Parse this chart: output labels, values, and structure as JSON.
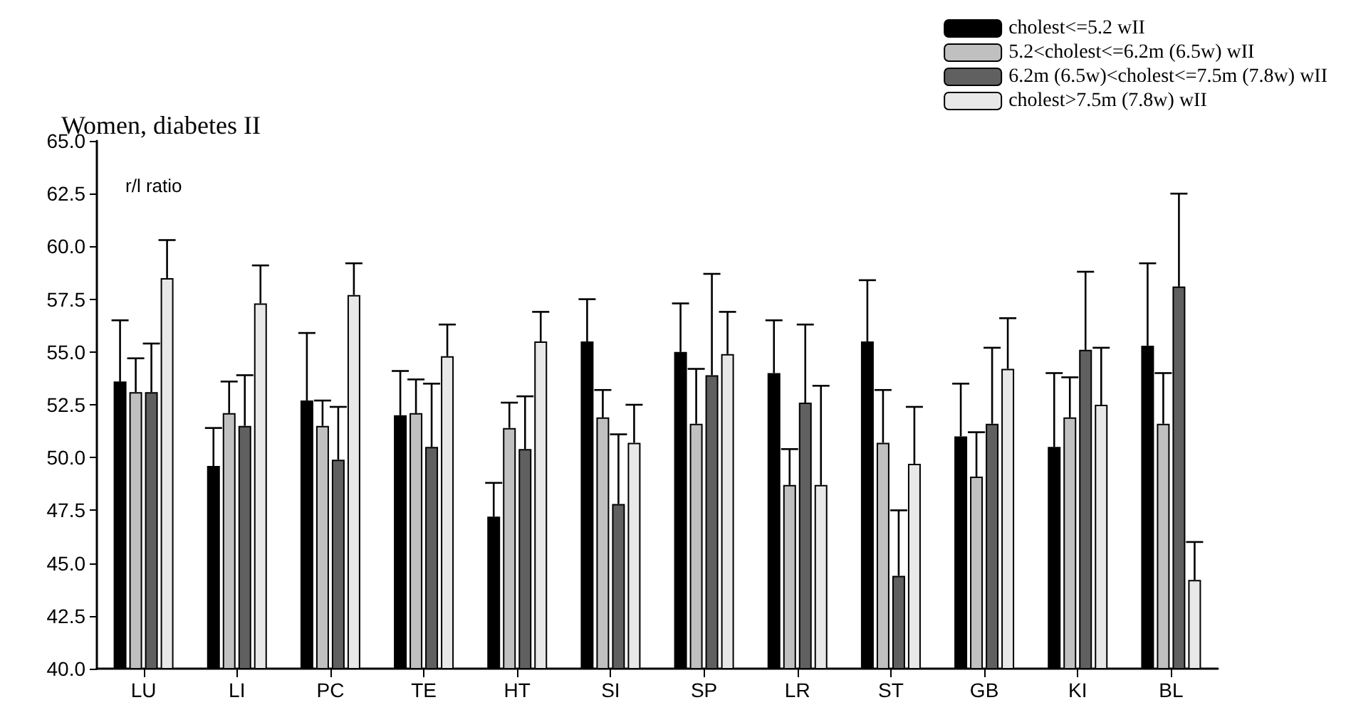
{
  "chart_data": {
    "type": "bar",
    "title": "Women, diabetes II",
    "ylabel": "r/l ratio",
    "categories": [
      "LU",
      "LI",
      "PC",
      "TE",
      "HT",
      "SI",
      "SP",
      "LR",
      "ST",
      "GB",
      "KI",
      "BL"
    ],
    "series": [
      {
        "name": "cholest<=5.2 wII",
        "color": "#000000",
        "values": [
          53.6,
          49.6,
          52.7,
          52.0,
          47.2,
          55.5,
          55.0,
          54.0,
          55.5,
          51.0,
          50.5,
          55.3
        ],
        "errors": [
          [
            53.6,
            56.5
          ],
          [
            49.6,
            51.4
          ],
          [
            52.7,
            55.9
          ],
          [
            52.0,
            54.1
          ],
          [
            47.2,
            48.8
          ],
          [
            55.5,
            57.5
          ],
          [
            55.0,
            57.3
          ],
          [
            54.0,
            56.5
          ],
          [
            55.5,
            58.4
          ],
          [
            51.0,
            53.5
          ],
          [
            50.5,
            54.0
          ],
          [
            55.3,
            59.2
          ]
        ]
      },
      {
        "name": "5.2<cholest<=6.2m (6.5w) wII",
        "color": "#c0c0c0",
        "values": [
          53.1,
          52.1,
          51.5,
          52.1,
          51.4,
          51.9,
          51.6,
          48.7,
          50.7,
          49.1,
          51.9,
          51.6
        ],
        "errors": [
          [
            53.1,
            54.7
          ],
          [
            52.1,
            53.6
          ],
          [
            51.5,
            52.7
          ],
          [
            52.1,
            53.7
          ],
          [
            51.4,
            52.6
          ],
          [
            51.9,
            53.2
          ],
          [
            51.6,
            54.2
          ],
          [
            48.7,
            50.4
          ],
          [
            50.7,
            53.2
          ],
          [
            49.1,
            51.2
          ],
          [
            51.9,
            53.8
          ],
          [
            51.6,
            54.0
          ]
        ]
      },
      {
        "name": "6.2m (6.5w)<cholest<=7.5m (7.8w) wII",
        "color": "#606060",
        "values": [
          53.1,
          51.5,
          49.9,
          50.5,
          50.4,
          47.8,
          53.9,
          52.6,
          44.4,
          51.6,
          55.1,
          58.1
        ],
        "errors": [
          [
            53.1,
            55.4
          ],
          [
            51.5,
            53.9
          ],
          [
            49.9,
            52.4
          ],
          [
            50.5,
            53.5
          ],
          [
            50.4,
            52.9
          ],
          [
            47.8,
            51.1
          ],
          [
            53.9,
            58.7
          ],
          [
            52.6,
            56.3
          ],
          [
            44.4,
            47.5
          ],
          [
            51.6,
            55.2
          ],
          [
            55.1,
            58.8
          ],
          [
            58.1,
            62.5
          ]
        ]
      },
      {
        "name": "cholest>7.5m (7.8w) wII",
        "color": "#e8e8e8",
        "values": [
          58.5,
          57.3,
          57.7,
          54.8,
          55.5,
          50.7,
          54.9,
          48.7,
          49.7,
          54.2,
          52.5,
          44.2
        ],
        "errors": [
          [
            58.5,
            60.3
          ],
          [
            57.3,
            59.1
          ],
          [
            57.7,
            59.2
          ],
          [
            54.8,
            56.3
          ],
          [
            55.5,
            56.9
          ],
          [
            50.7,
            52.5
          ],
          [
            54.9,
            56.9
          ],
          [
            48.7,
            53.4
          ],
          [
            49.7,
            52.4
          ],
          [
            54.2,
            56.6
          ],
          [
            52.5,
            55.2
          ],
          [
            44.2,
            46.0
          ]
        ]
      }
    ],
    "ylim": [
      40,
      65
    ],
    "yticks": [
      {
        "value": 40,
        "label": "40.0"
      },
      {
        "value": 42.5,
        "label": "42.5"
      },
      {
        "value": 45,
        "label": "45.0"
      },
      {
        "value": 47.5,
        "label": "47.5"
      },
      {
        "value": 50,
        "label": "50.0"
      },
      {
        "value": 52.5,
        "label": "52.5"
      },
      {
        "value": 55,
        "label": "55.0"
      },
      {
        "value": 57.5,
        "label": "57.5"
      },
      {
        "value": 60,
        "label": "60.0"
      },
      {
        "value": 62.5,
        "label": "62.5"
      },
      {
        "value": 65,
        "label": "65.0"
      }
    ],
    "grid": false,
    "legend": "top right"
  }
}
